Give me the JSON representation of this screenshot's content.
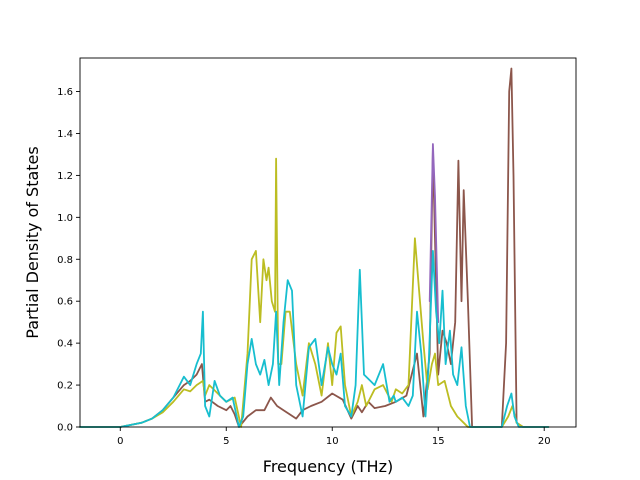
{
  "chart_data": {
    "type": "line",
    "title": "",
    "xlabel": "Frequency (THz)",
    "ylabel": "Partial Density of States",
    "xlim": [
      -1.9,
      21.5
    ],
    "ylim": [
      0.0,
      1.76
    ],
    "xticks": [
      0,
      5,
      10,
      15,
      20
    ],
    "xtick_labels": [
      "0",
      "5",
      "10",
      "15",
      "20"
    ],
    "yticks": [
      0.0,
      0.2,
      0.4,
      0.6,
      0.8,
      1.0,
      1.2,
      1.4,
      1.6
    ],
    "ytick_labels": [
      "0.0",
      "0.2",
      "0.4",
      "0.6",
      "0.8",
      "1.0",
      "1.2",
      "1.4",
      "1.6"
    ],
    "grid": false,
    "legend": "none",
    "series": [
      {
        "color": "#8c564b",
        "x": [
          -1.9,
          0,
          0.5,
          1,
          1.5,
          2,
          2.5,
          3,
          3.3,
          3.6,
          3.85,
          4.0,
          4.2,
          4.6,
          5.0,
          5.2,
          5.4,
          5.6,
          6.0,
          6.4,
          6.8,
          7.1,
          7.4,
          7.7,
          8.0,
          8.3,
          8.6,
          9.0,
          9.5,
          10.0,
          10.5,
          10.9,
          11.2,
          11.4,
          11.7,
          12.0,
          12.5,
          13.0,
          13.5,
          14.0,
          14.3,
          14.6,
          14.75,
          14.85,
          15.0,
          15.2,
          15.4,
          15.6,
          15.8,
          15.95,
          16.1,
          16.2,
          16.4,
          16.6,
          17.0,
          17.5,
          18.0,
          18.2,
          18.35,
          18.45,
          18.55,
          18.7,
          19.0,
          20.2
        ],
        "y": [
          0.0,
          0.0,
          0.01,
          0.02,
          0.04,
          0.08,
          0.14,
          0.2,
          0.22,
          0.25,
          0.3,
          0.12,
          0.13,
          0.1,
          0.08,
          0.1,
          0.06,
          0.0,
          0.05,
          0.08,
          0.08,
          0.14,
          0.1,
          0.08,
          0.06,
          0.04,
          0.08,
          0.1,
          0.12,
          0.16,
          0.13,
          0.04,
          0.1,
          0.07,
          0.12,
          0.09,
          0.1,
          0.12,
          0.15,
          0.35,
          0.05,
          0.35,
          1.32,
          0.9,
          0.25,
          0.46,
          0.4,
          0.3,
          0.5,
          1.27,
          0.6,
          1.13,
          0.6,
          0.0,
          0.0,
          0.0,
          0.0,
          0.4,
          1.6,
          1.71,
          1.2,
          0.02,
          0.0,
          0.0
        ]
      },
      {
        "color": "#9467bd",
        "x": [
          14.6,
          14.75,
          14.85,
          15.0
        ],
        "y": [
          0.6,
          1.35,
          1.1,
          0.5
        ]
      },
      {
        "color": "#bcbd22",
        "x": [
          -1.9,
          0,
          0.5,
          1,
          1.5,
          2,
          2.5,
          3,
          3.3,
          3.6,
          3.9,
          4.0,
          4.2,
          4.4,
          4.6,
          5.0,
          5.4,
          5.7,
          6.0,
          6.2,
          6.4,
          6.6,
          6.75,
          6.9,
          7.0,
          7.15,
          7.3,
          7.35,
          7.45,
          7.6,
          7.8,
          8.0,
          8.3,
          8.6,
          8.9,
          9.2,
          9.5,
          9.8,
          10.0,
          10.2,
          10.4,
          10.6,
          10.9,
          11.2,
          11.4,
          11.6,
          12.0,
          12.4,
          12.8,
          13.0,
          13.3,
          13.6,
          13.9,
          14.1,
          14.3,
          14.5,
          14.7,
          14.85,
          15.0,
          15.3,
          15.6,
          15.9,
          16.2,
          16.4,
          16.6,
          17.0,
          18.0,
          18.3,
          18.5,
          18.7,
          19.0,
          20.2
        ],
        "y": [
          0.0,
          0.0,
          0.01,
          0.02,
          0.04,
          0.07,
          0.12,
          0.18,
          0.17,
          0.2,
          0.22,
          0.15,
          0.2,
          0.18,
          0.16,
          0.12,
          0.14,
          0.0,
          0.35,
          0.8,
          0.84,
          0.5,
          0.8,
          0.7,
          0.76,
          0.6,
          0.55,
          1.28,
          0.3,
          0.3,
          0.55,
          0.55,
          0.3,
          0.15,
          0.4,
          0.3,
          0.15,
          0.4,
          0.2,
          0.45,
          0.48,
          0.2,
          0.05,
          0.12,
          0.2,
          0.1,
          0.18,
          0.2,
          0.12,
          0.18,
          0.16,
          0.2,
          0.9,
          0.65,
          0.4,
          0.18,
          0.3,
          0.35,
          0.2,
          0.22,
          0.1,
          0.05,
          0.02,
          0.0,
          0.0,
          0.0,
          0.0,
          0.05,
          0.1,
          0.02,
          0.0,
          0.0
        ]
      },
      {
        "color": "#17becf",
        "x": [
          -1.9,
          0,
          0.5,
          1,
          1.5,
          2,
          2.5,
          3,
          3.3,
          3.6,
          3.8,
          3.9,
          4.0,
          4.2,
          4.45,
          4.7,
          5.0,
          5.3,
          5.6,
          5.8,
          6.0,
          6.2,
          6.4,
          6.6,
          6.8,
          7.0,
          7.2,
          7.35,
          7.5,
          7.7,
          7.9,
          8.1,
          8.3,
          8.6,
          8.9,
          9.2,
          9.5,
          9.8,
          10.0,
          10.2,
          10.4,
          10.6,
          10.9,
          11.1,
          11.3,
          11.5,
          11.8,
          12.0,
          12.4,
          12.7,
          12.9,
          13.0,
          13.3,
          13.6,
          13.8,
          14.0,
          14.2,
          14.4,
          14.55,
          14.75,
          14.9,
          15.05,
          15.2,
          15.35,
          15.55,
          15.7,
          15.9,
          16.1,
          16.3,
          16.5,
          17.0,
          18.0,
          18.25,
          18.45,
          18.6,
          18.8,
          19.0,
          20.2
        ],
        "y": [
          0.0,
          0.0,
          0.01,
          0.02,
          0.04,
          0.08,
          0.14,
          0.24,
          0.2,
          0.3,
          0.35,
          0.55,
          0.1,
          0.05,
          0.22,
          0.15,
          0.12,
          0.14,
          0.0,
          0.05,
          0.3,
          0.42,
          0.3,
          0.25,
          0.32,
          0.2,
          0.3,
          0.55,
          0.2,
          0.5,
          0.7,
          0.65,
          0.2,
          0.05,
          0.38,
          0.42,
          0.2,
          0.38,
          0.3,
          0.25,
          0.35,
          0.1,
          0.05,
          0.2,
          0.75,
          0.25,
          0.22,
          0.2,
          0.3,
          0.12,
          0.15,
          0.12,
          0.14,
          0.1,
          0.15,
          0.55,
          0.35,
          0.05,
          0.3,
          0.84,
          0.55,
          0.4,
          0.65,
          0.3,
          0.46,
          0.25,
          0.2,
          0.38,
          0.1,
          0.0,
          0.0,
          0.0,
          0.1,
          0.16,
          0.05,
          0.0,
          0.0,
          0.0
        ]
      }
    ]
  }
}
